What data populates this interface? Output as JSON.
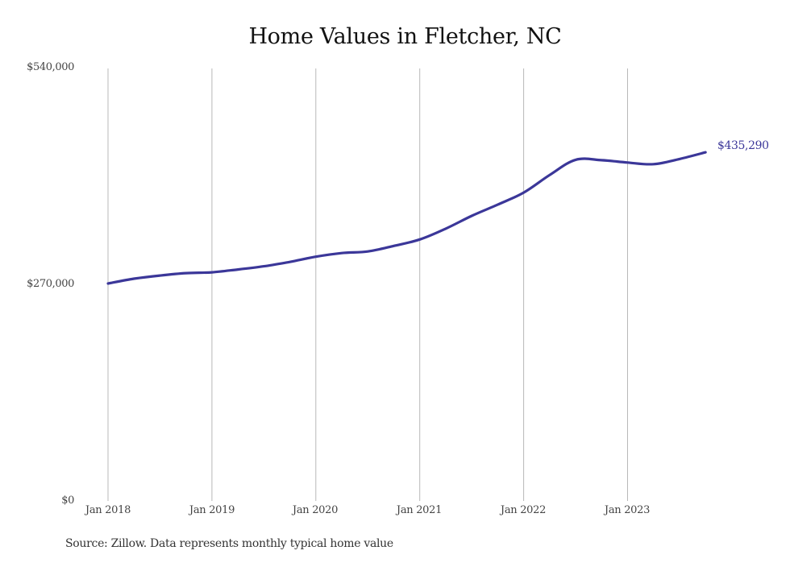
{
  "chart_data": {
    "type": "line",
    "title": "Home Values in Fletcher, NC",
    "xlabel": "",
    "ylabel": "",
    "ylim": [
      0,
      540000
    ],
    "y_ticks": [
      "$0",
      "$270,000",
      "$540,000"
    ],
    "x_ticks": [
      "Jan 2018",
      "Jan 2019",
      "Jan 2020",
      "Jan 2021",
      "Jan 2022",
      "Jan 2023"
    ],
    "grid": {
      "vertical": true,
      "horizontal": false
    },
    "legend": null,
    "line_color": "#3b3799",
    "end_label": "$435,290",
    "source": "Source: Zillow. Data represents monthly typical home value",
    "series": [
      {
        "name": "Typical home value",
        "x": [
          "2018-01",
          "2018-04",
          "2018-07",
          "2018-10",
          "2019-01",
          "2019-04",
          "2019-07",
          "2019-10",
          "2020-01",
          "2020-04",
          "2020-07",
          "2020-10",
          "2021-01",
          "2021-04",
          "2021-07",
          "2021-10",
          "2022-01",
          "2022-04",
          "2022-07",
          "2022-10",
          "2023-01",
          "2023-04",
          "2023-07",
          "2023-10"
        ],
        "values": [
          271500,
          277500,
          281500,
          284500,
          285500,
          289000,
          293000,
          298500,
          305000,
          309500,
          311500,
          318500,
          326500,
          340000,
          356000,
          370000,
          385000,
          407000,
          426000,
          425500,
          422500,
          420500,
          427000,
          435290
        ]
      }
    ]
  },
  "footer": {
    "source": "Source: Zillow. Data represents monthly typical home value"
  }
}
